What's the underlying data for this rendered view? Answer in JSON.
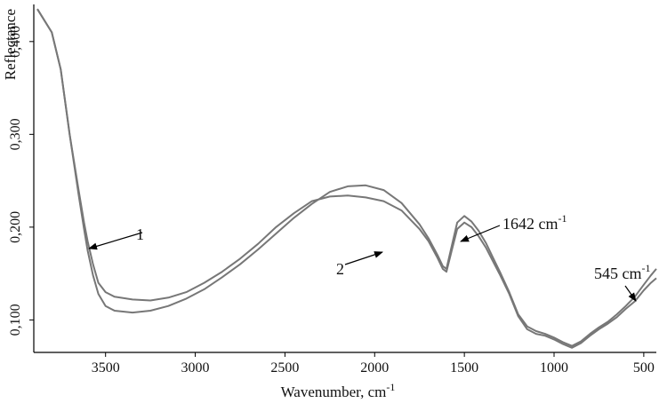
{
  "chart_data": {
    "type": "line",
    "xlabel": "Wavenumber, cm",
    "xlabel_sup": "-1",
    "ylabel": "Reflectance",
    "x_reversed": true,
    "xlim": [
      3900,
      430
    ],
    "ylim": [
      0.065,
      0.44
    ],
    "grid": false,
    "x_ticks": [
      {
        "value": 3500,
        "label": "3500"
      },
      {
        "value": 3000,
        "label": "3000"
      },
      {
        "value": 2500,
        "label": "2500"
      },
      {
        "value": 2000,
        "label": "2000"
      },
      {
        "value": 1500,
        "label": "1500"
      },
      {
        "value": 1000,
        "label": "1000"
      },
      {
        "value": 500,
        "label": "500"
      }
    ],
    "y_ticks": [
      {
        "value": 0.1,
        "label": "0,100"
      },
      {
        "value": 0.2,
        "label": "0,200"
      },
      {
        "value": 0.3,
        "label": "0,300"
      },
      {
        "value": 0.4,
        "label": "0,400"
      }
    ],
    "series": [
      {
        "name": "1",
        "x": [
          3880,
          3800,
          3750,
          3700,
          3650,
          3620,
          3600,
          3570,
          3540,
          3500,
          3450,
          3350,
          3250,
          3150,
          3050,
          2950,
          2850,
          2750,
          2650,
          2550,
          2450,
          2350,
          2250,
          2150,
          2050,
          1950,
          1850,
          1750,
          1700,
          1650,
          1620,
          1600,
          1570,
          1540,
          1500,
          1460,
          1420,
          1380,
          1340,
          1300,
          1250,
          1200,
          1150,
          1100,
          1050,
          1000,
          950,
          900,
          850,
          800,
          750,
          700,
          650,
          600,
          550,
          500,
          460,
          430
        ],
        "y": [
          0.435,
          0.41,
          0.37,
          0.3,
          0.24,
          0.205,
          0.185,
          0.16,
          0.14,
          0.13,
          0.125,
          0.122,
          0.121,
          0.124,
          0.13,
          0.14,
          0.152,
          0.166,
          0.182,
          0.2,
          0.215,
          0.228,
          0.233,
          0.234,
          0.232,
          0.228,
          0.218,
          0.198,
          0.185,
          0.167,
          0.155,
          0.152,
          0.175,
          0.198,
          0.205,
          0.2,
          0.19,
          0.178,
          0.163,
          0.148,
          0.128,
          0.104,
          0.09,
          0.085,
          0.083,
          0.079,
          0.074,
          0.07,
          0.075,
          0.083,
          0.09,
          0.096,
          0.103,
          0.112,
          0.12,
          0.132,
          0.14,
          0.145
        ]
      },
      {
        "name": "2",
        "x": [
          3880,
          3800,
          3750,
          3700,
          3650,
          3620,
          3600,
          3570,
          3540,
          3500,
          3450,
          3350,
          3250,
          3150,
          3050,
          2950,
          2850,
          2750,
          2650,
          2550,
          2450,
          2350,
          2250,
          2150,
          2050,
          1950,
          1850,
          1750,
          1700,
          1650,
          1620,
          1600,
          1570,
          1540,
          1500,
          1460,
          1420,
          1380,
          1340,
          1300,
          1250,
          1200,
          1150,
          1100,
          1050,
          1000,
          950,
          900,
          850,
          800,
          750,
          700,
          650,
          600,
          550,
          500,
          460,
          430
        ],
        "y": [
          0.435,
          0.41,
          0.37,
          0.3,
          0.235,
          0.198,
          0.175,
          0.148,
          0.128,
          0.115,
          0.11,
          0.108,
          0.11,
          0.115,
          0.123,
          0.133,
          0.146,
          0.16,
          0.176,
          0.193,
          0.21,
          0.225,
          0.238,
          0.244,
          0.245,
          0.24,
          0.226,
          0.203,
          0.188,
          0.17,
          0.158,
          0.155,
          0.18,
          0.205,
          0.212,
          0.206,
          0.196,
          0.183,
          0.167,
          0.151,
          0.13,
          0.106,
          0.093,
          0.088,
          0.085,
          0.081,
          0.076,
          0.072,
          0.077,
          0.085,
          0.092,
          0.098,
          0.106,
          0.115,
          0.125,
          0.138,
          0.148,
          0.155
        ]
      }
    ],
    "annotations": [
      {
        "text": "1",
        "target_x": 3600,
        "target_y": 0.2
      },
      {
        "text": "2",
        "target_x": 1920,
        "target_y": 0.21
      },
      {
        "text": "1642 cm",
        "sup": "-1",
        "target_x": 1500,
        "target_y": 0.22
      },
      {
        "text": "545 cm",
        "sup": "-1",
        "target_x": 520,
        "target_y": 0.13
      }
    ],
    "colors": {
      "series": "#777777",
      "axis": "#000000",
      "text": "#111111"
    }
  }
}
